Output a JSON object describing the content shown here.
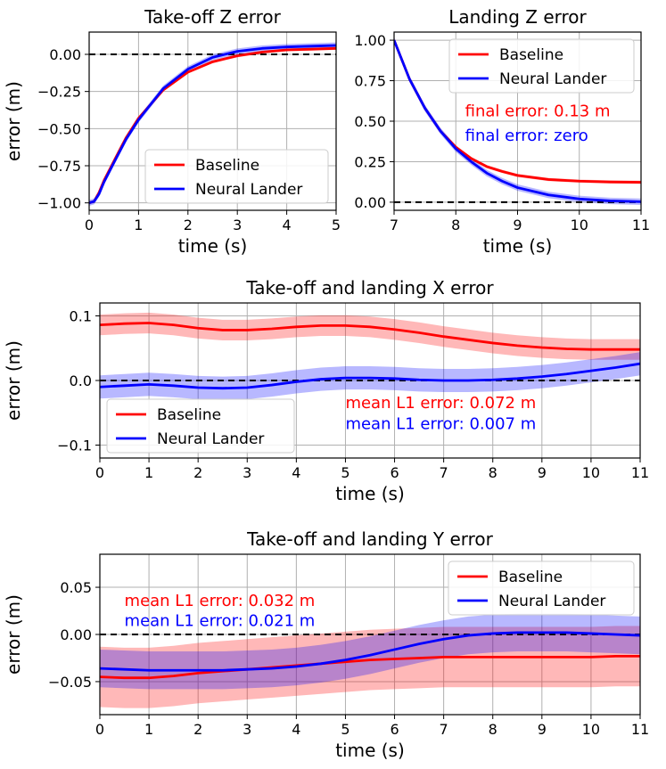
{
  "colors": {
    "baseline": "#ff0000",
    "neural": "#0000ff",
    "grid": "#b0b0b0",
    "zero": "#000000"
  },
  "chart_data": [
    {
      "id": "z-takeoff",
      "type": "line",
      "title": "Take-off Z error",
      "xlabel": "time (s)",
      "ylabel": "error (m)",
      "xlim": [
        0,
        5
      ],
      "ylim": [
        -1.05,
        0.15
      ],
      "xticks": [
        0,
        1,
        2,
        3,
        4,
        5
      ],
      "xtick_labels": [
        "0",
        "1",
        "2",
        "3",
        "4",
        "5"
      ],
      "yticks": [
        0,
        -0.25,
        -0.5,
        -0.75,
        -1
      ],
      "ytick_labels": [
        "0.00",
        "−0.25",
        "−0.50",
        "−0.75",
        "−1.00"
      ],
      "grid": true,
      "zero_line": 0,
      "legend": {
        "position": "lower-right",
        "entries": [
          "Baseline",
          "Neural Lander"
        ]
      },
      "annotations": [],
      "series": [
        {
          "name": "Baseline",
          "color": "baseline",
          "x": [
            0,
            0.1,
            0.2,
            0.3,
            0.5,
            0.75,
            1,
            1.5,
            2,
            2.5,
            3,
            3.5,
            4,
            4.5,
            5
          ],
          "y": [
            -1.0,
            -0.99,
            -0.93,
            -0.85,
            -0.72,
            -0.56,
            -0.43,
            -0.24,
            -0.12,
            -0.05,
            -0.01,
            0.015,
            0.03,
            0.035,
            0.04
          ],
          "band": 0.01
        },
        {
          "name": "Neural Lander",
          "color": "neural",
          "x": [
            0,
            0.1,
            0.2,
            0.3,
            0.5,
            0.75,
            1,
            1.5,
            2,
            2.5,
            3,
            3.5,
            4,
            4.5,
            5
          ],
          "y": [
            -1.0,
            -0.99,
            -0.94,
            -0.86,
            -0.73,
            -0.57,
            -0.44,
            -0.23,
            -0.1,
            -0.02,
            0.02,
            0.04,
            0.05,
            0.055,
            0.06
          ],
          "band": 0.02
        }
      ]
    },
    {
      "id": "z-landing",
      "type": "line",
      "title": "Landing Z error",
      "xlabel": "time (s)",
      "ylabel": "",
      "xlim": [
        7,
        11
      ],
      "ylim": [
        -0.05,
        1.05
      ],
      "xticks": [
        7,
        8,
        9,
        10,
        11
      ],
      "xtick_labels": [
        "7",
        "8",
        "9",
        "10",
        "11"
      ],
      "yticks": [
        0,
        0.25,
        0.5,
        0.75,
        1
      ],
      "ytick_labels": [
        "0.00",
        "0.25",
        "0.50",
        "0.75",
        "1.00"
      ],
      "grid": true,
      "zero_line": 0,
      "legend": {
        "position": "upper-right",
        "entries": [
          "Baseline",
          "Neural Lander"
        ]
      },
      "annotations": [
        {
          "text": "final error: 0.13 m",
          "color": "baseline",
          "x": 8.15,
          "y": 0.53
        },
        {
          "text": "final error: zero",
          "color": "neural",
          "x": 8.15,
          "y": 0.38
        }
      ],
      "series": [
        {
          "name": "Baseline",
          "color": "baseline",
          "x": [
            7,
            7.25,
            7.5,
            7.75,
            8,
            8.25,
            8.5,
            8.75,
            9,
            9.5,
            10,
            10.5,
            11
          ],
          "y": [
            1.0,
            0.76,
            0.58,
            0.44,
            0.34,
            0.27,
            0.22,
            0.19,
            0.165,
            0.14,
            0.13,
            0.125,
            0.123
          ],
          "band": 0.01
        },
        {
          "name": "Neural Lander",
          "color": "neural",
          "x": [
            7,
            7.25,
            7.5,
            7.75,
            8,
            8.25,
            8.5,
            8.75,
            9,
            9.5,
            10,
            10.5,
            11
          ],
          "y": [
            1.0,
            0.76,
            0.58,
            0.44,
            0.33,
            0.25,
            0.18,
            0.13,
            0.09,
            0.045,
            0.02,
            0.008,
            0.003
          ],
          "band": 0.02
        }
      ]
    },
    {
      "id": "x-error",
      "type": "line",
      "title": "Take-off and landing X error",
      "xlabel": "time (s)",
      "ylabel": "error (m)",
      "xlim": [
        0,
        11
      ],
      "ylim": [
        -0.12,
        0.12
      ],
      "xticks": [
        0,
        1,
        2,
        3,
        4,
        5,
        6,
        7,
        8,
        9,
        10,
        11
      ],
      "xtick_labels": [
        "0",
        "1",
        "2",
        "3",
        "4",
        "5",
        "6",
        "7",
        "8",
        "9",
        "10",
        "11"
      ],
      "yticks": [
        0.1,
        0,
        -0.1
      ],
      "ytick_labels": [
        "0.1",
        "0.0",
        "−0.1"
      ],
      "grid": true,
      "zero_line": 0,
      "legend": {
        "position": "lower-left",
        "entries": [
          "Baseline",
          "Neural Lander"
        ]
      },
      "annotations": [
        {
          "text": "mean L1 error: 0.072 m",
          "color": "baseline",
          "x": 5.0,
          "y": -0.043
        },
        {
          "text": "mean L1 error: 0.007 m",
          "color": "neural",
          "x": 5.0,
          "y": -0.075
        }
      ],
      "series": [
        {
          "name": "Baseline",
          "color": "baseline",
          "x": [
            0,
            0.5,
            1,
            1.5,
            2,
            2.5,
            3,
            3.5,
            4,
            4.5,
            5,
            5.5,
            6,
            6.5,
            7,
            7.5,
            8,
            8.5,
            9,
            9.5,
            10,
            10.5,
            11
          ],
          "y": [
            0.086,
            0.088,
            0.089,
            0.086,
            0.081,
            0.078,
            0.078,
            0.08,
            0.083,
            0.085,
            0.085,
            0.083,
            0.079,
            0.074,
            0.068,
            0.063,
            0.058,
            0.054,
            0.051,
            0.049,
            0.048,
            0.048,
            0.048
          ],
          "band": 0.016
        },
        {
          "name": "Neural Lander",
          "color": "neural",
          "x": [
            0,
            0.5,
            1,
            1.5,
            2,
            2.5,
            3,
            3.5,
            4,
            4.5,
            5,
            5.5,
            6,
            6.5,
            7,
            7.5,
            8,
            8.5,
            9,
            9.5,
            10,
            10.5,
            11
          ],
          "y": [
            -0.01,
            -0.008,
            -0.006,
            -0.008,
            -0.011,
            -0.012,
            -0.011,
            -0.007,
            -0.002,
            0.002,
            0.004,
            0.004,
            0.003,
            0.001,
            0.0,
            0.0,
            0.001,
            0.003,
            0.006,
            0.01,
            0.015,
            0.02,
            0.026
          ],
          "band": 0.018
        }
      ]
    },
    {
      "id": "y-error",
      "type": "line",
      "title": "Take-off and landing Y error",
      "xlabel": "time (s)",
      "ylabel": "error (m)",
      "xlim": [
        0,
        11
      ],
      "ylim": [
        -0.085,
        0.085
      ],
      "xticks": [
        0,
        1,
        2,
        3,
        4,
        5,
        6,
        7,
        8,
        9,
        10,
        11
      ],
      "xtick_labels": [
        "0",
        "1",
        "2",
        "3",
        "4",
        "5",
        "6",
        "7",
        "8",
        "9",
        "10",
        "11"
      ],
      "yticks": [
        0.05,
        0,
        -0.05
      ],
      "ytick_labels": [
        "0.05",
        "0.00",
        "−0.05"
      ],
      "grid": true,
      "zero_line": 0,
      "legend": {
        "position": "upper-right",
        "entries": [
          "Baseline",
          "Neural Lander"
        ]
      },
      "annotations": [
        {
          "text": "mean L1 error: 0.032 m",
          "color": "baseline",
          "x": 0.5,
          "y": 0.03
        },
        {
          "text": "mean L1 error: 0.021 m",
          "color": "neural",
          "x": 0.5,
          "y": 0.009
        }
      ],
      "series": [
        {
          "name": "Baseline",
          "color": "baseline",
          "x": [
            0,
            0.5,
            1,
            1.5,
            2,
            2.5,
            3,
            3.5,
            4,
            4.5,
            5,
            5.5,
            6,
            6.5,
            7,
            7.5,
            8,
            8.5,
            9,
            9.5,
            10,
            10.5,
            11
          ],
          "y": [
            -0.045,
            -0.046,
            -0.046,
            -0.044,
            -0.041,
            -0.039,
            -0.037,
            -0.035,
            -0.033,
            -0.031,
            -0.029,
            -0.027,
            -0.026,
            -0.025,
            -0.024,
            -0.024,
            -0.024,
            -0.024,
            -0.024,
            -0.024,
            -0.024,
            -0.023,
            -0.023
          ],
          "band": 0.032
        },
        {
          "name": "Neural Lander",
          "color": "neural",
          "x": [
            0,
            0.5,
            1,
            1.5,
            2,
            2.5,
            3,
            3.5,
            4,
            4.5,
            5,
            5.5,
            6,
            6.5,
            7,
            7.5,
            8,
            8.5,
            9,
            9.5,
            10,
            10.5,
            11
          ],
          "y": [
            -0.036,
            -0.037,
            -0.038,
            -0.038,
            -0.038,
            -0.038,
            -0.037,
            -0.036,
            -0.034,
            -0.031,
            -0.027,
            -0.022,
            -0.016,
            -0.01,
            -0.005,
            -0.001,
            0.001,
            0.002,
            0.002,
            0.002,
            0.001,
            0.0,
            -0.001
          ],
          "band": 0.02
        }
      ]
    }
  ]
}
